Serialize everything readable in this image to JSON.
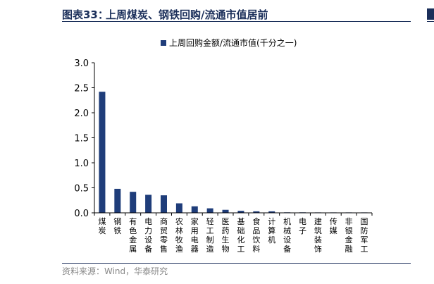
{
  "header": {
    "label": "图表33：",
    "title": "上周煤炭、钢铁回购/流通市值居前"
  },
  "source": "资料来源：Wind，华泰研究",
  "colors": {
    "bar": "#1f3d7a",
    "accent": "#1b2f5a"
  },
  "chart_data": {
    "type": "bar",
    "title": "",
    "xlabel": "",
    "ylabel": "",
    "ylim": [
      0,
      3.0
    ],
    "yticks": [
      "0.0",
      "0.5",
      "1.0",
      "1.5",
      "2.0",
      "2.5",
      "3.0"
    ],
    "legend": {
      "label": "上周回购金额/流通市值(千分之一)",
      "position": "top-center"
    },
    "grid": false,
    "categories": [
      "煤炭",
      "钢铁",
      "有色金属",
      "电力设备",
      "商贸零售",
      "农林牧渔",
      "家用电器",
      "轻工制造",
      "医药生物",
      "基础化工",
      "食品饮料",
      "计算机",
      "机械设备",
      "电子",
      "建筑装饰",
      "传媒",
      "非银金融",
      "国防军工"
    ],
    "values": [
      2.42,
      0.48,
      0.42,
      0.36,
      0.35,
      0.19,
      0.13,
      0.09,
      0.06,
      0.04,
      0.03,
      0.03,
      0.01,
      0.01,
      0.005,
      0.005,
      0.003,
      0.002
    ]
  }
}
